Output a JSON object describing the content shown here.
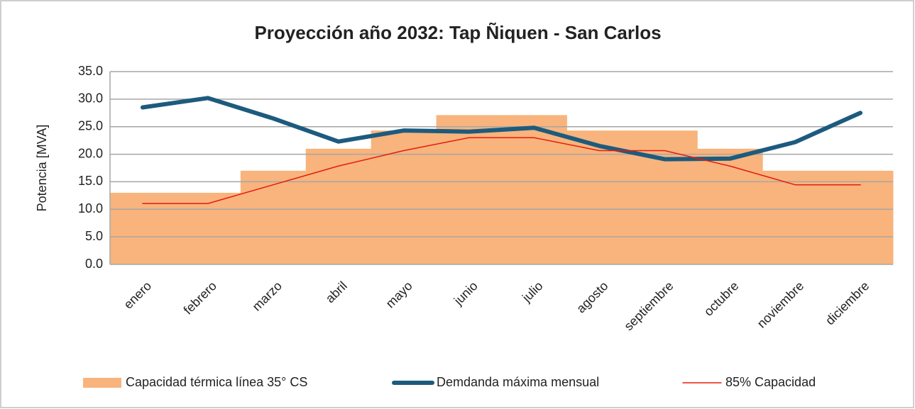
{
  "chart_data": {
    "type": "combo",
    "title": "Proyección año 2032: Tap Ñiquen - San Carlos",
    "y_label": "Potencia [MVA]",
    "categories": [
      "enero",
      "febrero",
      "marzo",
      "abril",
      "mayo",
      "junio",
      "julio",
      "agosto",
      "septiembre",
      "octubre",
      "noviembre",
      "diciembre"
    ],
    "series": [
      {
        "name": "Capacidad térmica línea 35° CS",
        "kind": "bar",
        "color": "#f8b47c",
        "values": [
          13,
          13,
          17,
          21,
          24.3,
          27.1,
          27.1,
          24.3,
          24.3,
          21,
          17,
          17
        ]
      },
      {
        "name": "Demdanda máxima mensual",
        "kind": "line",
        "width": 6,
        "color": "#1d5b7e",
        "values": [
          28.5,
          30.2,
          26.5,
          22.3,
          24.3,
          24.1,
          24.8,
          21.5,
          19.1,
          19.2,
          22.2,
          27.5
        ]
      },
      {
        "name": "85% Capacidad",
        "kind": "line",
        "width": 1.5,
        "color": "#e81a0c",
        "values": [
          11.05,
          11.05,
          14.45,
          17.85,
          20.65,
          23.0,
          23.0,
          20.65,
          20.65,
          17.85,
          14.45,
          14.45
        ]
      }
    ],
    "ylim": [
      0,
      35
    ],
    "yticks": [
      {
        "value": 0,
        "label": "0.0"
      },
      {
        "value": 5,
        "label": "5.0"
      },
      {
        "value": 10,
        "label": "10.0"
      },
      {
        "value": 15,
        "label": "15.0"
      },
      {
        "value": 20,
        "label": "20.0"
      },
      {
        "value": 25,
        "label": "25.0"
      },
      {
        "value": 30,
        "label": "30.0"
      },
      {
        "value": 35,
        "label": "35.0"
      }
    ],
    "grid": true,
    "legend": "bottom"
  }
}
